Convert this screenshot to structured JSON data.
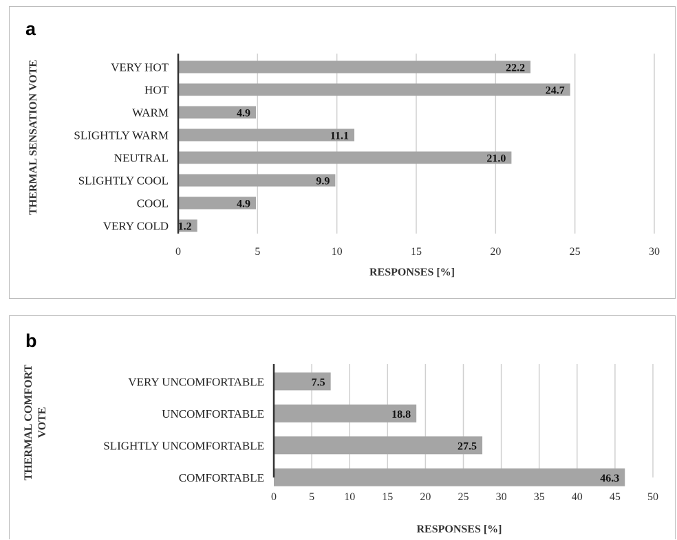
{
  "panels": [
    {
      "letter": "a"
    },
    {
      "letter": "b"
    }
  ],
  "chart_data": [
    {
      "type": "bar",
      "orientation": "horizontal",
      "categories": [
        "VERY HOT",
        "HOT",
        "WARM",
        "SLIGHTLY WARM",
        "NEUTRAL",
        "SLIGHTLY COOL",
        "COOL",
        "VERY COLD"
      ],
      "values": [
        22.2,
        24.7,
        4.9,
        11.1,
        21.0,
        9.9,
        4.9,
        1.2
      ],
      "value_labels": [
        "22.2",
        "24.7",
        "4.9",
        "11.1",
        "21.0",
        "9.9",
        "4.9",
        "1.2"
      ],
      "xlabel": "RESPONSES [%]",
      "ylabel": "THERMAL SENSATION VOTE",
      "xlim": [
        0,
        30
      ],
      "xticks": [
        0,
        5,
        10,
        15,
        20,
        25,
        30
      ],
      "grid": "vertical",
      "bar_color": "#a5a5a5"
    },
    {
      "type": "bar",
      "orientation": "horizontal",
      "categories": [
        "VERY UNCOMFORTABLE",
        "UNCOMFORTABLE",
        "SLIGHTLY UNCOMFORTABLE",
        "COMFORTABLE"
      ],
      "values": [
        7.5,
        18.8,
        27.5,
        46.3
      ],
      "value_labels": [
        "7.5",
        "18.8",
        "27.5",
        "46.3"
      ],
      "xlabel": "RESPONSES [%]",
      "ylabel": [
        "THERMAL COMFORT",
        "VOTE"
      ],
      "xlim": [
        0,
        50
      ],
      "xticks": [
        0,
        5,
        10,
        15,
        20,
        25,
        30,
        35,
        40,
        45,
        50
      ],
      "grid": "vertical",
      "bar_color": "#a5a5a5"
    }
  ]
}
